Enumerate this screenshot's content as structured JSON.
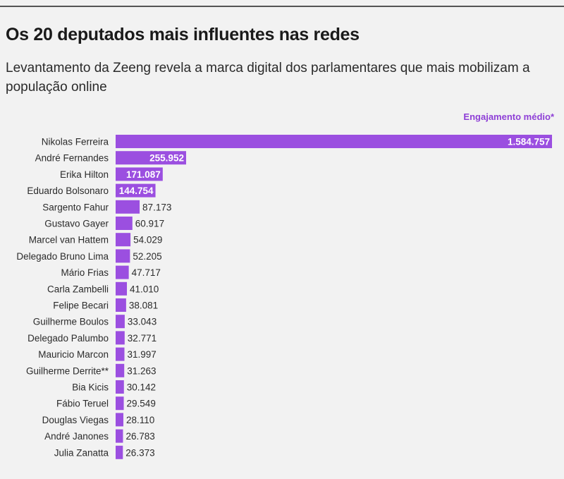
{
  "header": {
    "title": "Os 20 deputados mais influentes nas redes",
    "subtitle": "Levantamento da Zeeng revela a marca digital dos parlamentares que mais mobilizam a população online",
    "measure_label": "Engajamento médio*"
  },
  "colors": {
    "bar": "#9b4fe0",
    "measure_label": "#8e3fd6",
    "background": "#f2f2f2"
  },
  "chart_data": {
    "type": "bar",
    "orientation": "horizontal",
    "title": "Os 20 deputados mais influentes nas redes",
    "subtitle": "Levantamento da Zeeng revela a marca digital dos parlamentares que mais mobilizam a população online",
    "xlabel": "Engajamento médio*",
    "ylabel": "",
    "xlim": [
      0,
      1584757
    ],
    "grid": false,
    "categories": [
      "Nikolas Ferreira",
      "André Fernandes",
      "Erika Hilton",
      "Eduardo Bolsonaro",
      "Sargento Fahur",
      "Gustavo Gayer",
      "Marcel van Hattem",
      "Delegado Bruno Lima",
      "Mário Frias",
      "Carla Zambelli",
      "Felipe Becari",
      "Guilherme Boulos",
      "Delegado Palumbo",
      "Mauricio Marcon",
      "Guilherme Derrite**",
      "Bia Kicis",
      "Fábio Teruel",
      "Douglas Viegas",
      "André Janones",
      "Julia Zanatta"
    ],
    "values": [
      1584757,
      255952,
      171087,
      144754,
      87173,
      60917,
      54029,
      52205,
      47717,
      41010,
      38081,
      33043,
      32771,
      31997,
      31263,
      30142,
      29549,
      28110,
      26783,
      26373
    ],
    "value_labels": [
      "1.584.757",
      "255.952",
      "171.087",
      "144.754",
      "87.173",
      "60.917",
      "54.029",
      "52.205",
      "47.717",
      "41.010",
      "38.081",
      "33.043",
      "32.771",
      "31.997",
      "31.263",
      "30.142",
      "29.549",
      "28.110",
      "26.783",
      "26.373"
    ]
  }
}
